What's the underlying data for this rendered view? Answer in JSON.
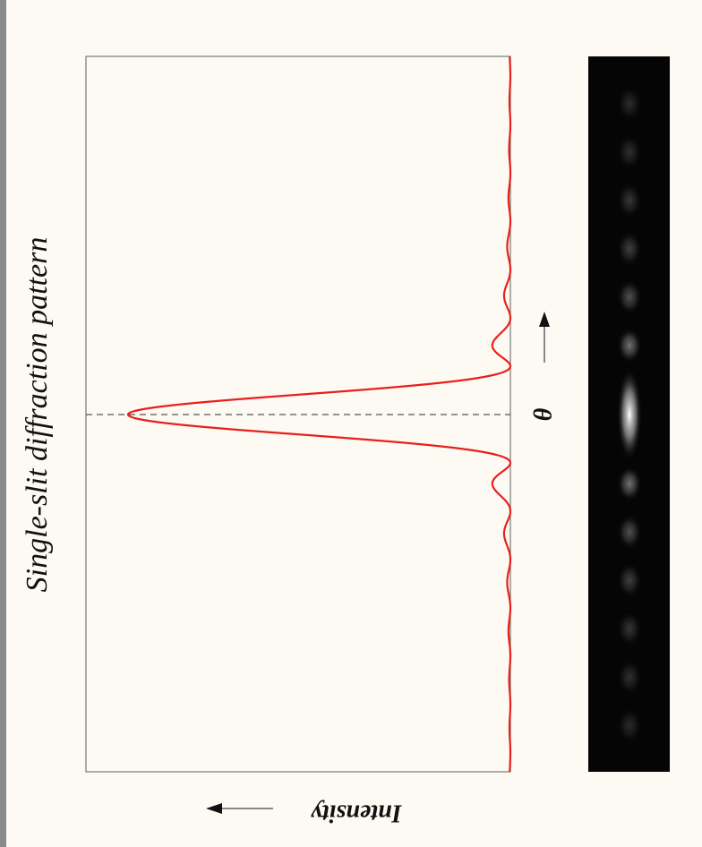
{
  "title": "Single-slit diffraction pattern",
  "x_label": "θ",
  "y_label": "Intensity"
}
